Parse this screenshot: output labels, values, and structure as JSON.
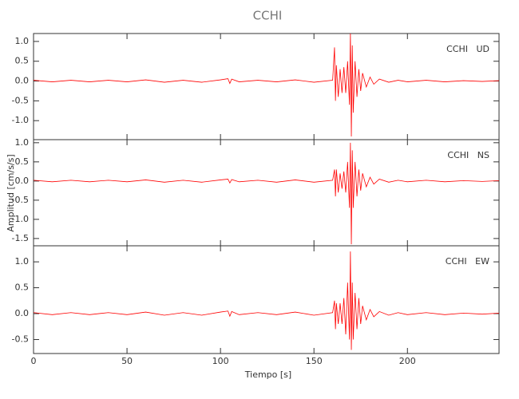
{
  "title": "CCHI",
  "xlabel": "Tiempo [s]",
  "ylabel": "Amplitud [cm/s/s]",
  "chart_data": [
    {
      "type": "line",
      "panel_label": "CCHI   UD",
      "color": "#ff0000",
      "xlim": [
        0,
        249
      ],
      "xticks": [
        0,
        50,
        100,
        150,
        200
      ],
      "ylim": [
        -1.48,
        1.2
      ],
      "yticks": [
        1.0,
        0.5,
        0.0,
        -0.5,
        -1.0
      ],
      "x": [
        0,
        10,
        20,
        30,
        40,
        50,
        60,
        70,
        80,
        90,
        100,
        104,
        105,
        106,
        110,
        120,
        130,
        140,
        150,
        160,
        161,
        161.5,
        162,
        163,
        164,
        165,
        166,
        167,
        168,
        169,
        169.5,
        170,
        170.5,
        171,
        172,
        173,
        174,
        175,
        176,
        178,
        180,
        182,
        185,
        190,
        195,
        200,
        210,
        220,
        230,
        240,
        249
      ],
      "values": [
        0.02,
        -0.02,
        0.02,
        -0.02,
        0.02,
        -0.02,
        0.03,
        -0.03,
        0.02,
        -0.03,
        0.03,
        0.06,
        -0.06,
        0.05,
        -0.02,
        0.02,
        -0.02,
        0.03,
        -0.03,
        0.02,
        0.85,
        -0.5,
        0.4,
        -0.4,
        0.3,
        -0.3,
        0.35,
        -0.3,
        0.5,
        -0.6,
        1.2,
        -1.4,
        0.9,
        -0.8,
        0.5,
        -0.4,
        0.3,
        -0.25,
        0.2,
        -0.15,
        0.1,
        -0.08,
        0.05,
        -0.03,
        0.02,
        -0.02,
        0.02,
        -0.02,
        0.01,
        -0.01,
        0.01
      ]
    },
    {
      "type": "line",
      "panel_label": "CCHI   NS",
      "color": "#ff0000",
      "xlim": [
        0,
        249
      ],
      "xticks": [
        0,
        50,
        100,
        150,
        200
      ],
      "ylim": [
        -1.69,
        1.08
      ],
      "yticks": [
        1.0,
        0.5,
        0.0,
        -0.5,
        -1.0,
        -1.5
      ],
      "x": [
        0,
        10,
        20,
        30,
        40,
        50,
        60,
        70,
        80,
        90,
        100,
        104,
        105,
        106,
        110,
        120,
        130,
        140,
        150,
        160,
        161,
        161.5,
        162,
        163,
        164,
        165,
        166,
        167,
        168,
        169,
        169.5,
        170,
        170.5,
        171,
        172,
        173,
        174,
        175,
        176,
        178,
        180,
        182,
        185,
        190,
        195,
        200,
        210,
        220,
        230,
        240,
        249
      ],
      "values": [
        0.02,
        -0.02,
        0.02,
        -0.02,
        0.02,
        -0.02,
        0.03,
        -0.03,
        0.02,
        -0.03,
        0.03,
        0.05,
        -0.05,
        0.04,
        -0.02,
        0.02,
        -0.03,
        0.03,
        -0.03,
        0.02,
        0.3,
        -0.4,
        0.3,
        -0.3,
        0.2,
        -0.2,
        0.25,
        -0.3,
        0.5,
        -0.7,
        1.0,
        -1.65,
        0.8,
        -0.7,
        0.5,
        -0.4,
        0.3,
        -0.25,
        0.2,
        -0.15,
        0.1,
        -0.08,
        0.05,
        -0.03,
        0.02,
        -0.02,
        0.02,
        -0.02,
        0.01,
        -0.01,
        0.01
      ]
    },
    {
      "type": "line",
      "panel_label": "CCHI   EW",
      "color": "#ff0000",
      "xlim": [
        0,
        249
      ],
      "xticks": [
        0,
        50,
        100,
        150,
        200
      ],
      "ylim": [
        -0.77,
        1.31
      ],
      "yticks": [
        1.0,
        0.5,
        0.0,
        -0.5
      ],
      "x": [
        0,
        10,
        20,
        30,
        40,
        50,
        60,
        70,
        80,
        90,
        100,
        104,
        105,
        106,
        110,
        120,
        130,
        140,
        150,
        160,
        161,
        161.5,
        162,
        163,
        164,
        165,
        166,
        167,
        168,
        169,
        169.5,
        170,
        170.5,
        171,
        172,
        173,
        174,
        175,
        176,
        178,
        180,
        182,
        185,
        190,
        195,
        200,
        210,
        220,
        230,
        240,
        249
      ],
      "values": [
        0.02,
        -0.02,
        0.02,
        -0.02,
        0.02,
        -0.02,
        0.03,
        -0.03,
        0.02,
        -0.03,
        0.03,
        0.05,
        -0.05,
        0.04,
        -0.02,
        0.02,
        -0.02,
        0.03,
        -0.03,
        0.02,
        0.25,
        -0.3,
        0.2,
        -0.2,
        0.2,
        -0.2,
        0.3,
        -0.4,
        0.6,
        -0.5,
        1.2,
        -0.7,
        0.6,
        -0.5,
        0.4,
        -0.3,
        0.3,
        -0.2,
        0.15,
        -0.12,
        0.08,
        -0.06,
        0.04,
        -0.03,
        0.02,
        -0.02,
        0.02,
        -0.02,
        0.01,
        -0.01,
        0.01
      ]
    }
  ]
}
